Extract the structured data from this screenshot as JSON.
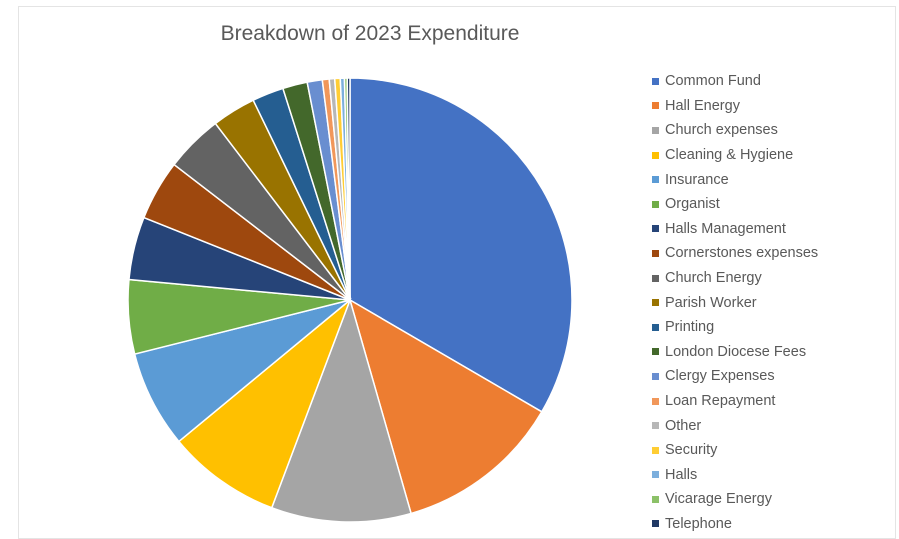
{
  "chart_data": {
    "type": "pie",
    "title": "Breakdown of 2023 Expenditure",
    "legend_position": "right",
    "series": [
      {
        "name": "Common Fund",
        "value": 33.5,
        "color": "#4472C4"
      },
      {
        "name": "Hall Energy",
        "value": 12.2,
        "color": "#ED7D31"
      },
      {
        "name": "Church expenses",
        "value": 10.2,
        "color": "#A5A5A5"
      },
      {
        "name": "Cleaning & Hygiene",
        "value": 8.3,
        "color": "#FFC000"
      },
      {
        "name": "Insurance",
        "value": 7.1,
        "color": "#5B9BD5"
      },
      {
        "name": "Organist",
        "value": 5.4,
        "color": "#70AD47"
      },
      {
        "name": "Halls Management",
        "value": 4.6,
        "color": "#264478"
      },
      {
        "name": "Cornerstones expenses",
        "value": 4.4,
        "color": "#9E480E"
      },
      {
        "name": "Church Energy",
        "value": 4.2,
        "color": "#636363"
      },
      {
        "name": "Parish Worker",
        "value": 3.2,
        "color": "#997300"
      },
      {
        "name": "Printing",
        "value": 2.3,
        "color": "#255E91"
      },
      {
        "name": "London Diocese Fees",
        "value": 1.8,
        "color": "#43682B"
      },
      {
        "name": "Clergy Expenses",
        "value": 1.1,
        "color": "#698ED0"
      },
      {
        "name": "Loan Repayment",
        "value": 0.5,
        "color": "#F1975A"
      },
      {
        "name": "Other",
        "value": 0.4,
        "color": "#B7B7B7"
      },
      {
        "name": "Security",
        "value": 0.4,
        "color": "#FFCD33"
      },
      {
        "name": "Halls",
        "value": 0.3,
        "color": "#7CAFDD"
      },
      {
        "name": "Vicarage Energy",
        "value": 0.2,
        "color": "#8CC168"
      },
      {
        "name": "Telephone",
        "value": 0.2,
        "color": "#203864"
      }
    ]
  }
}
